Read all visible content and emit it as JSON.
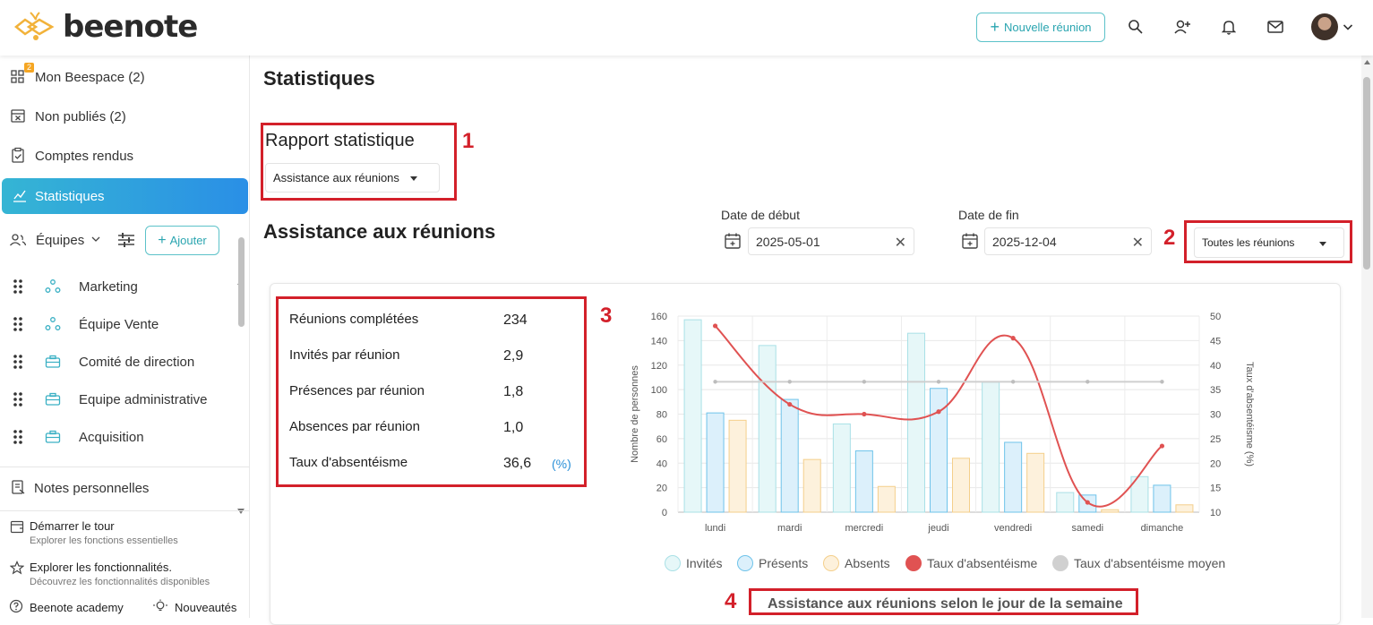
{
  "app": {
    "name": "beenote"
  },
  "topbar": {
    "new_meeting_label": "Nouvelle réunion",
    "icons": [
      "search-icon",
      "add-user-icon",
      "bell-icon",
      "mail-icon",
      "avatar"
    ]
  },
  "sidebar": {
    "nav": [
      {
        "label": "Mon Beespace (2)",
        "badge": "2",
        "icon": "grid-icon"
      },
      {
        "label": "Non publiés (2)",
        "icon": "calendar-x-icon"
      },
      {
        "label": "Comptes rendus",
        "icon": "clipboard-check-icon"
      },
      {
        "label": "Statistiques",
        "icon": "chart-icon",
        "active": true
      }
    ],
    "teams_label": "Équipes",
    "add_label": "Ajouter",
    "teams": [
      {
        "label": "Marketing",
        "icon": "team-dots-icon"
      },
      {
        "label": "Équipe Vente",
        "icon": "team-dots-icon"
      },
      {
        "label": "Comité de direction",
        "icon": "briefcase-icon"
      },
      {
        "label": "Equipe administrative",
        "icon": "briefcase-icon"
      },
      {
        "label": "Acquisition",
        "icon": "briefcase-icon"
      }
    ],
    "personal_notes": "Notes personnelles",
    "tour": {
      "title": "Démarrer le tour",
      "subtitle": "Explorer les fonctions essentielles"
    },
    "features": {
      "title": "Explorer les fonctionnalités.",
      "subtitle": "Découvrez les fonctionnalités disponibles"
    },
    "academy": "Beenote academy",
    "news": "Nouveautés"
  },
  "main": {
    "page_title": "Statistiques",
    "report_title": "Rapport statistique",
    "report_select": "Assistance aux réunions",
    "section_title": "Assistance aux réunions",
    "start_label": "Date de début",
    "start_value": "2025-05-01",
    "end_label": "Date de fin",
    "end_value": "2025-12-04",
    "meetings_filter": "Toutes les réunions",
    "annotations": [
      "1",
      "2",
      "3",
      "4"
    ],
    "stats": [
      {
        "label": "Réunions complétées",
        "value": "234"
      },
      {
        "label": "Invités par réunion",
        "value": "2,9"
      },
      {
        "label": "Présences par réunion",
        "value": "1,8"
      },
      {
        "label": "Absences par réunion",
        "value": "1,0"
      },
      {
        "label": "Taux d'absentéisme",
        "value": "36,6",
        "unit": "(%)"
      }
    ]
  },
  "chart_data": {
    "type": "bar",
    "title": "Assistance aux réunions selon le jour de la semaine",
    "categories": [
      "lundi",
      "mardi",
      "mercredi",
      "jeudi",
      "vendredi",
      "samedi",
      "dimanche"
    ],
    "ylabel": "Nombre de personnes",
    "y2label": "Taux d'absentéisme (%)",
    "ylim": [
      0,
      160
    ],
    "y2lim": [
      10,
      50
    ],
    "yticks": [
      0,
      20,
      40,
      60,
      80,
      100,
      120,
      140,
      160
    ],
    "y2ticks": [
      10,
      15,
      20,
      25,
      30,
      35,
      40,
      45,
      50
    ],
    "series": [
      {
        "name": "Invités",
        "type": "bar",
        "axis": "left",
        "values": [
          157,
          136,
          72,
          146,
          106,
          16,
          29
        ],
        "color": "#e6f7f8",
        "stroke": "#a9e0e6"
      },
      {
        "name": "Présents",
        "type": "bar",
        "axis": "left",
        "values": [
          81,
          92,
          50,
          101,
          57,
          14,
          22
        ],
        "color": "#dcf0fb",
        "stroke": "#6ec3ea"
      },
      {
        "name": "Absents",
        "type": "bar",
        "axis": "left",
        "values": [
          75,
          43,
          21,
          44,
          48,
          2,
          6
        ],
        "color": "#fdf1dc",
        "stroke": "#f4cf8b"
      },
      {
        "name": "Taux d'absentéisme",
        "type": "line",
        "axis": "right",
        "values": [
          48,
          32,
          30,
          30.5,
          45.5,
          12,
          23.5
        ],
        "color": "#e05252"
      },
      {
        "name": "Taux d'absentéisme moyen",
        "type": "line",
        "axis": "right",
        "values": [
          36.6,
          36.6,
          36.6,
          36.6,
          36.6,
          36.6,
          36.6
        ],
        "color": "#cfcfcf"
      }
    ],
    "grid": true,
    "legend": "bottom"
  }
}
